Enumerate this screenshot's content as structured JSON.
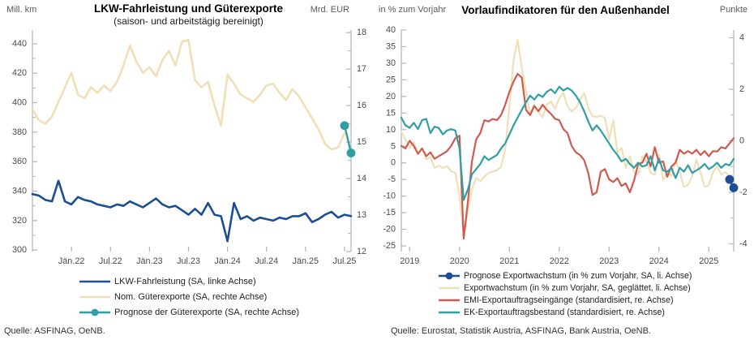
{
  "page": {
    "background": "#ffffff",
    "axis_color": "#b3b3b3",
    "tick_text_color": "#4a4a4a"
  },
  "chart_data": [
    {
      "type": "line",
      "title": "LKW-Fahrleistung und Güterexporte",
      "subtitle": "(saison- und arbeitstägig bereinigt)",
      "source": "Quelle: ASFINAG, OeNB.",
      "n_points": 50,
      "x_labels": [
        "Jän.22",
        "Jul.22",
        "Jän.23",
        "Jul.23",
        "Jän.24",
        "Jul.24",
        "Jän.25",
        "Jul.25"
      ],
      "x_label_indices": [
        6,
        12,
        18,
        24,
        30,
        36,
        42,
        48
      ],
      "left_axis": {
        "label": "Mill. km",
        "min": 299,
        "max": 449.3,
        "tick_min": 300,
        "tick_max": 440,
        "tick_step": 20,
        "minor_step": 10
      },
      "right_axis": {
        "label": "Mrd. EUR",
        "min": 12,
        "max": 18.07,
        "tick_min": 12,
        "tick_max": 18,
        "tick_step": 1,
        "minor_step": 0.5
      },
      "legend_order": [
        1,
        0,
        2
      ],
      "series": [
        {
          "key": "nom-gueterexporte",
          "legend": "Nom. Güterexporte (SA, rechte Achse)",
          "axis": "right",
          "color": "#f0dfb7",
          "width": 2.6,
          "marker": false,
          "values": [
            15.9,
            15.6,
            15.5,
            15.7,
            16.1,
            16.5,
            16.9,
            16.3,
            16.2,
            16.5,
            16.35,
            16.55,
            16.4,
            16.65,
            17.1,
            17.65,
            17.2,
            16.9,
            17.05,
            16.8,
            17.25,
            17.5,
            17.1,
            17.75,
            17.8,
            16.7,
            16.5,
            16.65,
            16.0,
            15.45,
            16.85,
            16.6,
            16.3,
            16.2,
            16.1,
            16.3,
            16.55,
            16.6,
            16.35,
            16.15,
            16.45,
            16.25,
            15.95,
            15.65,
            15.35,
            14.95,
            14.8,
            14.85,
            15.25
          ]
        },
        {
          "key": "lkw-fahrleistung",
          "legend": "LKW-Fahrleistung (SA, linke Achse)",
          "axis": "left",
          "color": "#1b4e92",
          "width": 2.6,
          "marker": false,
          "values": [
            338,
            337,
            334,
            333,
            347,
            333,
            331,
            336,
            334,
            333,
            331,
            330,
            329,
            331,
            330,
            333,
            331,
            329,
            332,
            335,
            331,
            329,
            330,
            327,
            324,
            328,
            324,
            332,
            324,
            323,
            306,
            332,
            321,
            323,
            320,
            322,
            321,
            320,
            322,
            321,
            323,
            323,
            325,
            319,
            321,
            324,
            326,
            322,
            324,
            323
          ]
        },
        {
          "key": "prognose-gueterexporte",
          "legend": "Prognose der Güterexporte (SA, rechte Achse)",
          "axis": "right",
          "color": "#2f9fa4",
          "width": 2.4,
          "marker": true,
          "start_index": 48,
          "values": [
            15.45,
            14.7
          ]
        }
      ]
    },
    {
      "type": "line",
      "title": "Vorlaufindikatoren für den Außenhandel",
      "subtitle": "",
      "source": "Quelle: Eurostat, Statistik Austria, ASFINAG, Bank Austria, OeNB.",
      "n_points": 81,
      "x_labels": [
        "2019",
        "2020",
        "2021",
        "2022",
        "2023",
        "2024",
        "2025"
      ],
      "x_label_indices": [
        2,
        14,
        26,
        38,
        50,
        62,
        74
      ],
      "left_axis": {
        "label": "in % zum Vorjahr",
        "min": -26.7,
        "max": 40,
        "tick_min": -25,
        "tick_max": 40,
        "tick_step": 5,
        "minor_step": 0
      },
      "right_axis": {
        "label": "Punkte",
        "min": -4.3,
        "max": 4.3,
        "tick_min": -4,
        "tick_max": 4,
        "tick_step": 2,
        "minor_step": 1
      },
      "legend_order": [
        3,
        0,
        1,
        2
      ],
      "series": [
        {
          "key": "exportwachstum",
          "legend": "Exportwachstum (in % zum Vorjahr, SA, geglättet, li. Achse)",
          "axis": "left",
          "color": "#f0dfb7",
          "width": 2.2,
          "marker": false,
          "values": [
            9.5,
            7.0,
            4.5,
            6.2,
            2.5,
            4.5,
            1.0,
            1.8,
            -1.5,
            -0.8,
            -1.5,
            -1.0,
            -2.5,
            -3.0,
            -10.0,
            -22.0,
            -14.5,
            -8.0,
            -4.5,
            -5.5,
            -4.2,
            -3.0,
            -2.6,
            -2.2,
            -1.2,
            4.0,
            17.0,
            31.0,
            37.0,
            28.5,
            21.5,
            15.0,
            17.5,
            15.2,
            13.8,
            17.5,
            18.5,
            16.2,
            19.5,
            21.0,
            17.0,
            15.5,
            16.5,
            19.0,
            21.0,
            16.5,
            14.0,
            13.8,
            14.2,
            13.6,
            7.0,
            12.8,
            3.0,
            4.5,
            -1.5,
            2.0,
            -2.8,
            -3.5,
            2.0,
            0.5,
            -3.0,
            -3.5,
            2.6,
            -5.2,
            -2.5,
            -4.0,
            1.0,
            -2.5,
            -7.2,
            -6.6,
            -4.0,
            0.9,
            -2.8,
            -7.2,
            -6.7,
            -2.8,
            -1.1,
            -3.5,
            -2.8,
            -4.0,
            -3.5
          ]
        },
        {
          "key": "emi-exportauftragseingaenge",
          "legend": "EMI-Exportauftragseingänge (standardisiert, re. Achse)",
          "axis": "right",
          "color": "#cf5a4e",
          "width": 2.2,
          "marker": false,
          "values": [
            -0.2,
            -0.3,
            0.0,
            -0.2,
            -0.5,
            -0.3,
            -0.6,
            -0.45,
            -0.7,
            -0.6,
            -0.5,
            -0.4,
            -0.2,
            0.1,
            0.2,
            -3.8,
            -2.4,
            -0.8,
            0.05,
            0.3,
            0.8,
            0.75,
            0.85,
            0.8,
            1.0,
            1.4,
            1.9,
            2.3,
            2.6,
            2.45,
            1.2,
            1.0,
            1.35,
            1.15,
            1.4,
            1.2,
            1.05,
            0.85,
            0.8,
            0.45,
            0.3,
            -0.2,
            -0.45,
            -0.55,
            -0.75,
            -1.25,
            -2.1,
            -2.0,
            -1.2,
            -1.1,
            -1.5,
            -1.6,
            -1.45,
            -1.75,
            -1.65,
            -2.0,
            -1.55,
            -0.9,
            -0.85,
            -0.5,
            -1.0,
            -0.25,
            -0.85,
            -0.8,
            -1.4,
            -1.0,
            -0.85,
            -0.35,
            -0.5,
            -0.4,
            -0.5,
            -0.35,
            -0.55,
            -0.4,
            -0.6,
            -0.4,
            -0.42,
            -0.25,
            -0.3,
            -0.1,
            0.1
          ]
        },
        {
          "key": "ek-exportauftragsbestand",
          "legend": "EK-Exportauftragsbestand (standardisiert, re. Achse)",
          "axis": "right",
          "color": "#2f9fa4",
          "width": 2.2,
          "marker": false,
          "values": [
            0.9,
            0.6,
            0.5,
            0.7,
            0.45,
            0.8,
            0.85,
            0.3,
            0.55,
            0.5,
            0.25,
            0.4,
            0.45,
            0.4,
            -0.3,
            -2.3,
            -1.9,
            -1.3,
            -1.1,
            -0.9,
            -0.6,
            -0.75,
            -0.65,
            -0.55,
            -0.3,
            -0.1,
            0.25,
            0.6,
            0.9,
            1.2,
            1.5,
            1.75,
            1.6,
            1.8,
            1.7,
            1.9,
            2.0,
            1.85,
            2.1,
            1.95,
            2.05,
            1.95,
            1.75,
            1.5,
            1.15,
            0.75,
            0.4,
            0.6,
            0.4,
            0.15,
            -0.1,
            -0.35,
            -0.55,
            -0.8,
            -0.7,
            -0.9,
            -1.05,
            -0.85,
            -1.0,
            -0.95,
            -0.6,
            -1.15,
            -0.7,
            -1.15,
            -1.2,
            -1.05,
            -1.45,
            -1.05,
            -1.2,
            -0.95,
            -1.25,
            -1.15,
            -1.05,
            -0.9,
            -1.1,
            -1.0,
            -0.85,
            -1.05,
            -0.9,
            -0.95,
            -0.7
          ]
        },
        {
          "key": "prognose-exportwachstum",
          "legend": "Prognose Exportwachstum (in % zum Vorjahr, SA, li. Achse)",
          "axis": "left",
          "color": "#1b4e92",
          "width": 2.4,
          "marker": true,
          "start_index": 79,
          "values": [
            -5.0,
            -7.5
          ]
        }
      ]
    }
  ]
}
